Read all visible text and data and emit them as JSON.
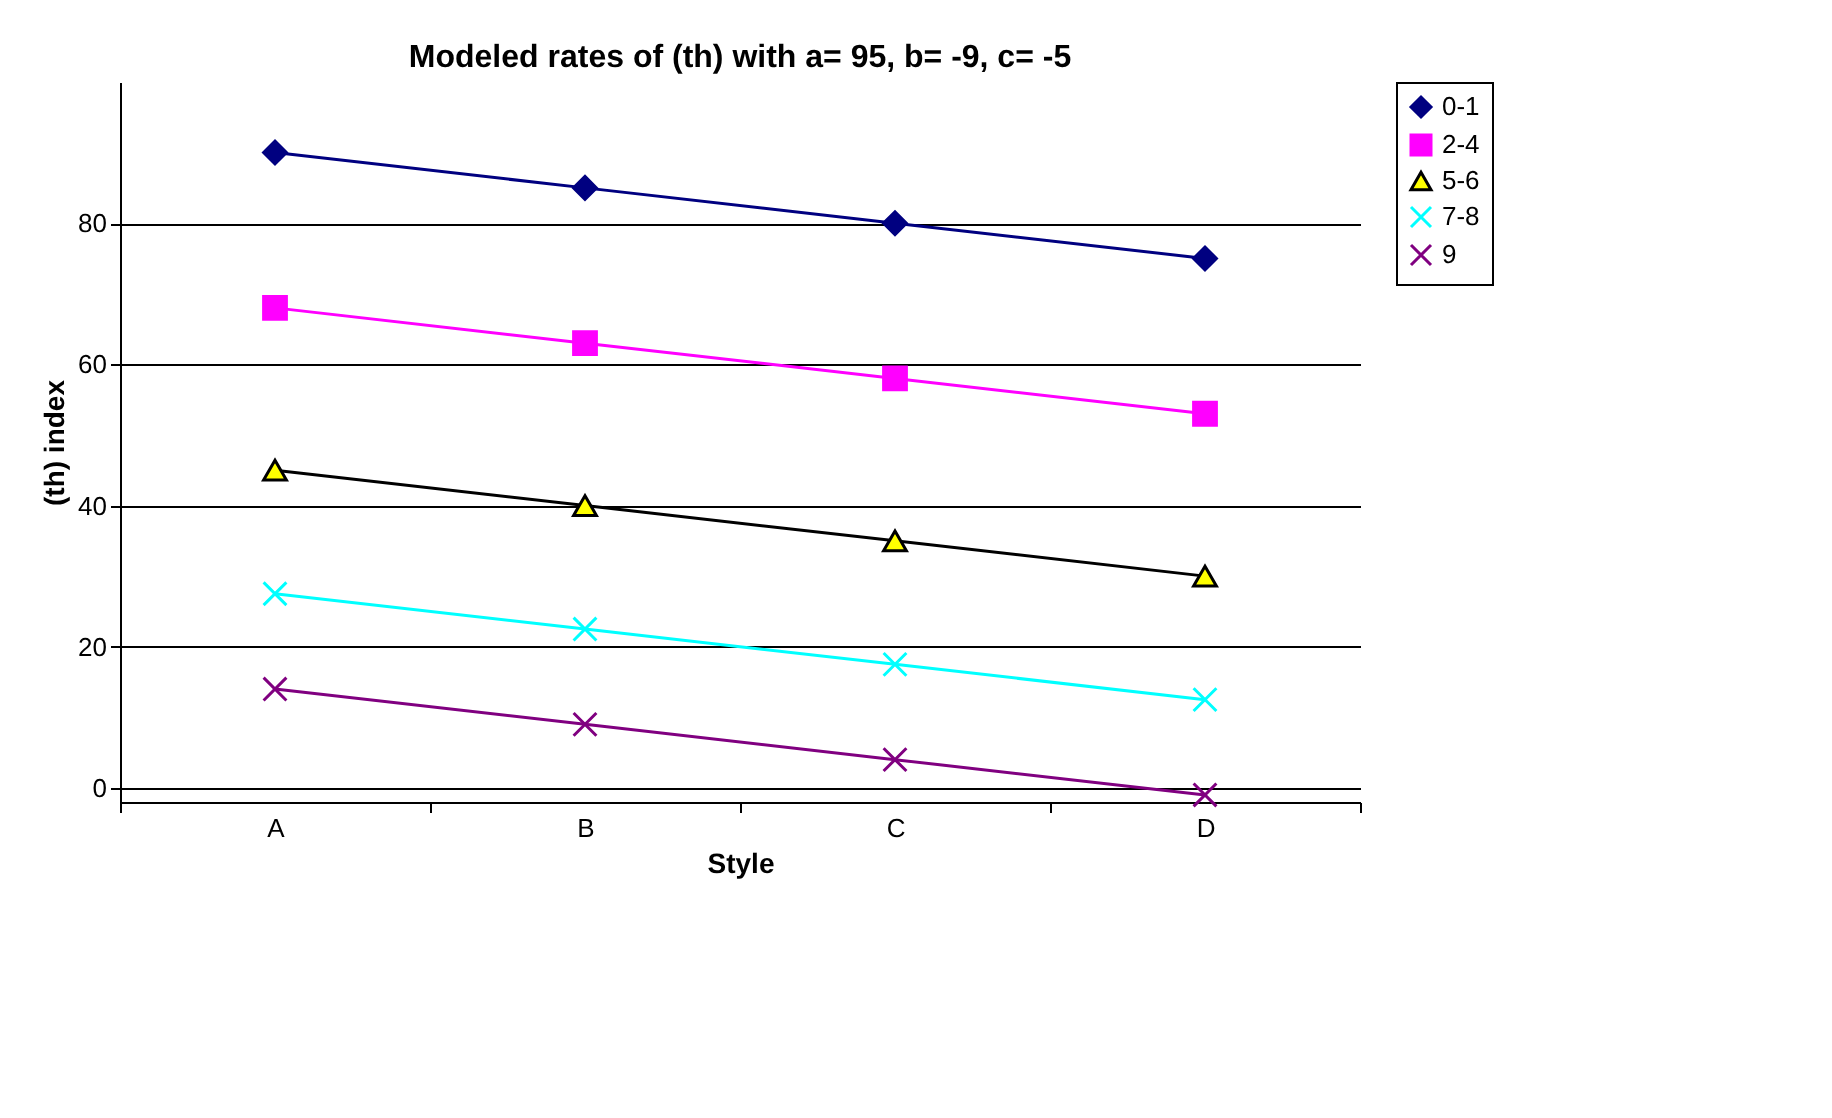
{
  "chart_data": {
    "type": "line",
    "title": "Modeled rates of (th) with a= 95, b= -9, c= -5",
    "xlabel": "Style",
    "ylabel": "(th) index",
    "categories": [
      "A",
      "B",
      "C",
      "D"
    ],
    "series": [
      {
        "name": "0-1",
        "color": "#000080",
        "marker": "diamond",
        "values": [
          90,
          85,
          80,
          75
        ]
      },
      {
        "name": "2-4",
        "color": "#ff00ff",
        "marker": "square",
        "values": [
          68,
          63,
          58,
          53
        ]
      },
      {
        "name": "5-6",
        "color": "#000000",
        "marker": "triangle",
        "values": [
          45,
          40,
          35,
          30
        ]
      },
      {
        "name": "7-8",
        "color": "#00ffff",
        "marker": "cross",
        "values": [
          27.5,
          22.5,
          17.5,
          12.5
        ]
      },
      {
        "name": "9",
        "color": "#800080",
        "marker": "cross",
        "values": [
          14,
          9,
          4,
          -1
        ]
      }
    ],
    "ylim": [
      -2,
      100
    ],
    "yticks": [
      0,
      20,
      40,
      60,
      80
    ],
    "grid": "y",
    "legend": "right"
  }
}
